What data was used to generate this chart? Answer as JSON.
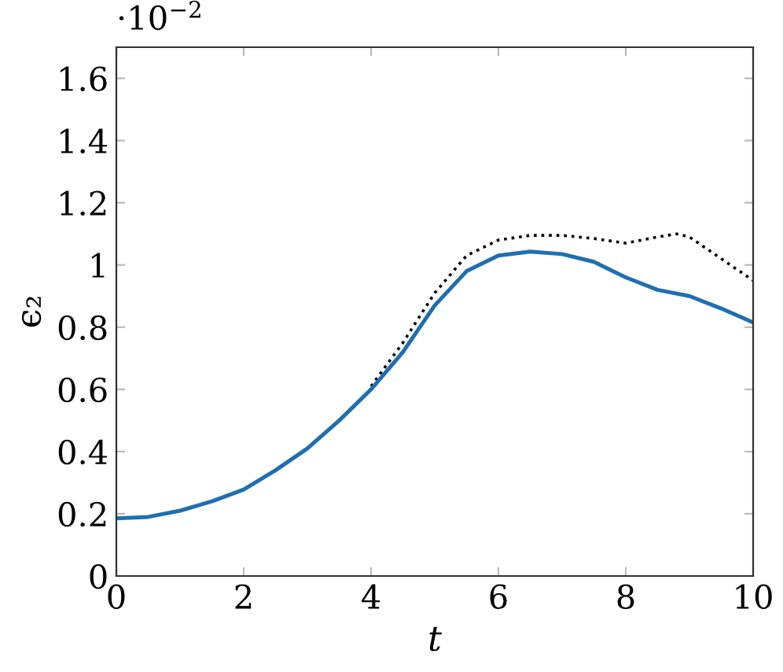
{
  "chart_data": {
    "type": "line",
    "xlabel": "t",
    "ylabel": "ϵ₂",
    "annotations": [
      "·10$^{−2}$"
    ],
    "xlim": [
      0,
      10
    ],
    "xticks": [
      0,
      2,
      4,
      6,
      8,
      10
    ],
    "ylim": [
      0,
      1.7
    ],
    "yticks": [
      0,
      0.2,
      0.4,
      0.6,
      0.8,
      1,
      1.2,
      1.4,
      1.6
    ],
    "grid": false,
    "series": [
      {
        "color": "#000000",
        "line_style": "dotted",
        "x": [
          4,
          4.5,
          5,
          5.5,
          6,
          6.5,
          7,
          7.5,
          8,
          8.5,
          8.8,
          9,
          9.5,
          10
        ],
        "values": [
          0.61,
          0.75,
          0.91,
          1.03,
          1.08,
          1.095,
          1.095,
          1.085,
          1.07,
          1.09,
          1.1,
          1.09,
          1.02,
          0.95
        ]
      },
      {
        "color": "#1f6fb0",
        "line_style": "solid",
        "x": [
          0,
          0.5,
          1,
          1.5,
          2,
          2.5,
          3,
          3.5,
          4,
          4.5,
          5,
          5.5,
          6,
          6.5,
          7,
          7.5,
          8,
          8.5,
          9,
          9.5,
          10
        ],
        "values": [
          0.185,
          0.19,
          0.21,
          0.24,
          0.278,
          0.34,
          0.41,
          0.5,
          0.6,
          0.72,
          0.87,
          0.98,
          1.03,
          1.043,
          1.035,
          1.01,
          0.96,
          0.92,
          0.9,
          0.86,
          0.815
        ]
      }
    ]
  }
}
